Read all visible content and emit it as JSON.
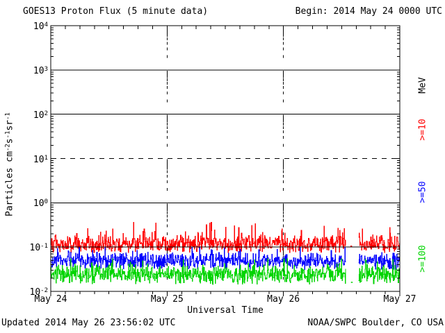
{
  "header": {
    "title": "GOES13 Proton Flux (5 minute data)",
    "begin_label": "Begin: 2014 May 24 0000 UTC"
  },
  "footer": {
    "updated": "Updated 2014 May 26 23:56:02 UTC",
    "credit": "NOAA/SWPC Boulder, CO USA"
  },
  "colors": {
    "background": "#ffffff",
    "frame": "#000000",
    "text": "#000000",
    "series_red": "#ff0000",
    "series_blue": "#0000ff",
    "series_green": "#00d400"
  },
  "chart_data": {
    "type": "line",
    "title": "GOES13 Proton Flux (5 minute data)",
    "xlabel": "Universal Time",
    "ylabel_plain": "Particles cm-2s-1sr-1",
    "ylabel_parts": [
      {
        "t": "Particles cm",
        "sup": false
      },
      {
        "t": "-2",
        "sup": true
      },
      {
        "t": "s",
        "sup": false
      },
      {
        "t": "-1",
        "sup": true
      },
      {
        "t": "sr",
        "sup": false
      },
      {
        "t": "-1",
        "sup": true
      }
    ],
    "unit_label": "MeV",
    "y_scale": "log",
    "ylim": [
      0.01,
      10000
    ],
    "y_base": "10",
    "y_tick_exponents": [
      4,
      3,
      2,
      1,
      0,
      -1,
      -2
    ],
    "x_tick_labels": [
      "May 24",
      "May 25",
      "May 26",
      "May 27"
    ],
    "x_range_days": 3,
    "x_minor_tick_hours": 3,
    "gridlines": {
      "solid_at": [
        1000,
        100,
        1,
        0.1
      ],
      "dashed_at": [
        10
      ],
      "vertical_dashed_at_days": [
        1,
        2
      ]
    },
    "samples_per_day": 288,
    "data_gap_days": [
      2.535,
      2.645
    ],
    "series": [
      {
        "name": ">=10",
        "color": "#ff0000",
        "approx_mean_flux": 0.115,
        "approx_range": [
          0.075,
          0.38
        ],
        "gen": {
          "seed": 101,
          "mean_log": -0.93,
          "amp": 0.14,
          "spike_prob": 0.1,
          "spike_amp": 0.38,
          "clamp": [
            -1.12,
            -0.42
          ]
        }
      },
      {
        "name": ">=50",
        "color": "#0000ff",
        "approx_mean_flux": 0.049,
        "approx_range": [
          0.026,
          0.1
        ],
        "gen": {
          "seed": 202,
          "mean_log": -1.31,
          "amp": 0.13,
          "spike_prob": 0.09,
          "spike_amp": 0.3,
          "clamp": [
            -1.58,
            -1.0
          ]
        }
      },
      {
        "name": ">=100",
        "color": "#00d400",
        "approx_mean_flux": 0.024,
        "approx_range": [
          0.012,
          0.055
        ],
        "gen": {
          "seed": 303,
          "mean_log": -1.62,
          "amp": 0.15,
          "spike_prob": 0.09,
          "spike_amp": 0.32,
          "clamp": [
            -1.94,
            -1.26
          ]
        }
      }
    ],
    "isolated_gap_points": [
      {
        "series_index": 0,
        "day": 2.575,
        "flux": 0.105
      },
      {
        "series_index": 2,
        "day": 2.58,
        "flux": 0.016
      }
    ]
  }
}
